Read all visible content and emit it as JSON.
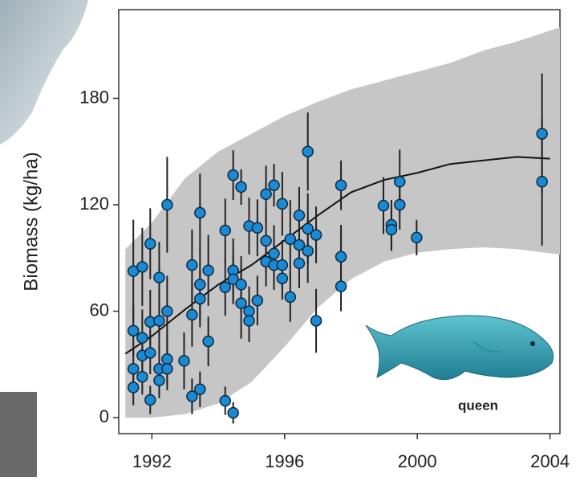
{
  "chart_data": {
    "type": "scatter",
    "y_label": "Biomass (kg/ha)",
    "annotation": "queen",
    "xlim": [
      1991,
      2004.3
    ],
    "ylim": [
      -9,
      230
    ],
    "xticks": [
      1992,
      1996,
      2000,
      2004
    ],
    "yticks": [
      0,
      60,
      120,
      180
    ],
    "envelope": {
      "color": "#c6c6c6",
      "x": [
        1991.2,
        1992,
        1993,
        1994,
        1995,
        1996,
        1997,
        1998,
        1999,
        2000,
        2001,
        2002,
        2003,
        2004.3
      ],
      "lower": [
        0,
        0,
        2,
        8,
        20,
        40,
        62,
        78,
        88,
        93,
        95,
        96,
        95,
        92
      ],
      "upper": [
        95,
        110,
        135,
        150,
        160,
        170,
        178,
        185,
        190,
        195,
        200,
        207,
        212,
        220
      ]
    },
    "mean": {
      "color": "#111111",
      "x": [
        1991.2,
        1992,
        1993,
        1994,
        1995,
        1996,
        1997,
        1998,
        1999,
        2000,
        2001,
        2002,
        2003,
        2004
      ],
      "values": [
        36,
        46,
        61,
        75,
        86,
        100,
        114,
        127,
        134,
        138,
        143,
        145,
        147,
        146
      ]
    },
    "points": {
      "color": "#1a8ad4",
      "x": [
        1991.44,
        1991.44,
        1991.44,
        1991.44,
        1991.71,
        1991.71,
        1991.71,
        1991.71,
        1991.95,
        1991.95,
        1991.95,
        1991.95,
        1992.22,
        1992.22,
        1992.22,
        1992.22,
        1992.46,
        1992.46,
        1992.46,
        1992.46,
        1992.97,
        1993.21,
        1993.21,
        1993.21,
        1993.45,
        1993.45,
        1993.45,
        1993.45,
        1993.7,
        1993.7,
        1994.21,
        1994.21,
        1994.21,
        1994.45,
        1994.45,
        1994.45,
        1994.45,
        1994.69,
        1994.69,
        1994.69,
        1994.93,
        1994.93,
        1994.93,
        1995.18,
        1995.18,
        1995.44,
        1995.44,
        1995.44,
        1995.68,
        1995.68,
        1995.68,
        1995.93,
        1995.93,
        1995.93,
        1996.17,
        1996.17,
        1996.44,
        1996.44,
        1996.44,
        1996.7,
        1996.7,
        1996.7,
        1996.95,
        1996.95,
        1997.7,
        1997.7,
        1997.7,
        1998.98,
        1999.22,
        1999.22,
        1999.47,
        1999.47,
        1999.98,
        2003.76,
        2003.76
      ],
      "values": [
        82.6,
        49,
        27.5,
        17,
        85,
        45,
        35,
        23,
        98,
        36.5,
        10,
        54,
        79,
        54.6,
        27.5,
        21,
        120,
        60,
        33,
        27.5,
        32,
        86,
        58,
        12,
        115.5,
        75,
        67,
        16,
        83,
        43,
        105.5,
        73.5,
        9.5,
        136.7,
        83,
        78,
        2.7,
        130,
        64.5,
        75,
        108,
        60,
        54.6,
        107,
        66,
        126,
        99.7,
        88,
        131,
        92.5,
        86,
        120.5,
        86,
        78.5,
        100.6,
        68,
        114,
        97.4,
        87,
        150,
        106.5,
        94,
        103,
        54.6,
        131,
        90.7,
        74,
        119.5,
        108.7,
        106,
        133,
        120,
        101.5,
        160,
        133
      ],
      "errors": [
        29,
        14,
        12,
        10,
        22,
        16,
        12,
        10,
        20,
        12,
        8,
        18,
        20,
        18,
        12,
        10,
        27,
        20,
        14,
        12,
        16,
        20,
        18,
        10,
        22,
        20,
        16,
        10,
        20,
        14,
        18,
        16,
        8,
        14,
        18,
        14,
        6,
        10,
        20,
        16,
        16,
        14,
        12,
        16,
        14,
        16,
        18,
        14,
        12,
        16,
        14,
        18,
        14,
        12,
        22,
        14,
        16,
        18,
        14,
        22,
        20,
        18,
        16,
        18,
        14,
        18,
        14,
        16,
        14,
        12,
        18,
        14,
        10,
        34,
        36
      ]
    }
  }
}
